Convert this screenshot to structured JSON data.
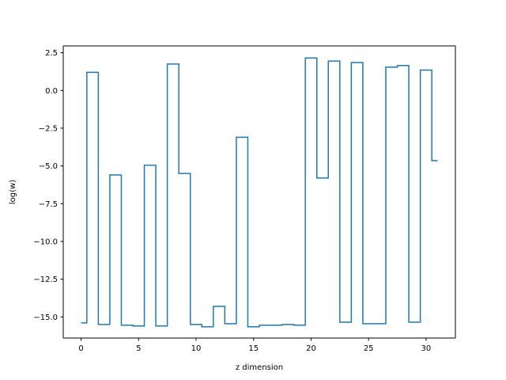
{
  "chart_data": {
    "type": "line",
    "drawstyle": "steps-mid",
    "title": "",
    "xlabel": "z dimension",
    "ylabel": "log(w)",
    "xlim": [
      -1.55,
      32.55
    ],
    "ylim": [
      -16.4,
      2.95
    ],
    "xticks": [
      0,
      5,
      10,
      15,
      20,
      25,
      30
    ],
    "yticks": [
      2.5,
      0.0,
      -2.5,
      -5.0,
      -7.5,
      -10.0,
      -12.5,
      -15.0
    ],
    "ytick_labels": [
      "2.5",
      "0.0",
      "−2.5",
      "−5.0",
      "−7.5",
      "−10.0",
      "−12.5",
      "−15.0"
    ],
    "grid": false,
    "series": [
      {
        "color": "#1f77b4",
        "x": [
          0,
          1,
          2,
          3,
          4,
          5,
          6,
          7,
          8,
          9,
          10,
          11,
          12,
          13,
          14,
          15,
          16,
          17,
          18,
          19,
          20,
          21,
          22,
          23,
          24,
          25,
          26,
          27,
          28,
          29,
          30,
          31
        ],
        "y": [
          -15.4,
          1.2,
          -15.5,
          -5.6,
          -15.55,
          -15.6,
          -4.95,
          -15.6,
          1.75,
          -5.5,
          -15.5,
          -15.65,
          -14.3,
          -15.45,
          -3.1,
          -15.65,
          -15.55,
          -15.55,
          -15.5,
          -15.55,
          2.15,
          -5.8,
          1.95,
          -15.35,
          1.85,
          -15.45,
          -15.45,
          1.55,
          1.65,
          -15.35,
          1.35,
          -4.65
        ]
      }
    ]
  }
}
